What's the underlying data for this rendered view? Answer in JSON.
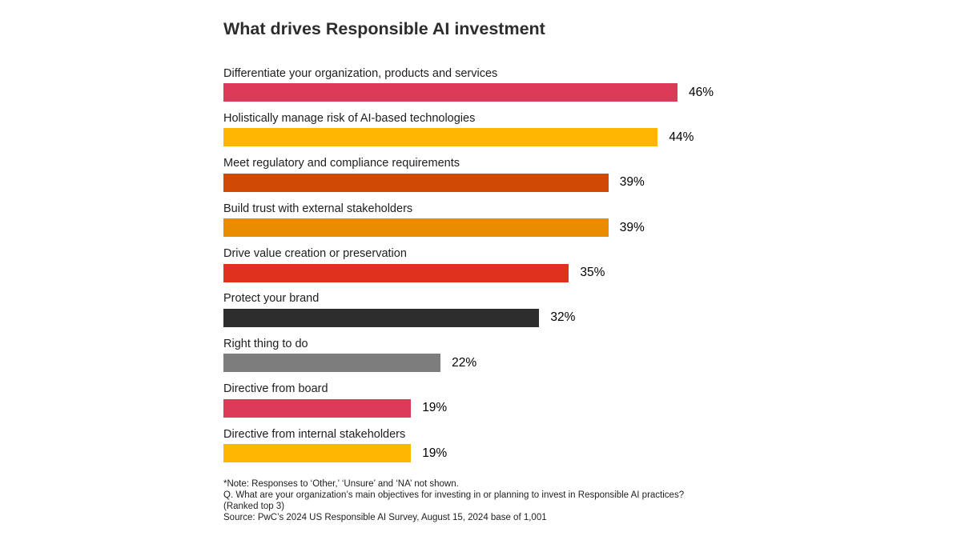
{
  "chart_data": {
    "type": "bar",
    "orientation": "horizontal",
    "title": "What drives Responsible AI investment",
    "xlabel": "",
    "ylabel": "",
    "grid": false,
    "legend": "none",
    "unit": "%",
    "categories": [
      "Differentiate your organization, products and services",
      "Holistically manage risk of AI-based technologies",
      "Meet regulatory and compliance requirements",
      "Build trust with external stakeholders",
      "Drive value creation or preservation",
      "Protect your brand",
      "Right thing to do",
      "Directive from board",
      "Directive from internal stakeholders"
    ],
    "values": [
      46,
      44,
      39,
      39,
      35,
      32,
      22,
      19,
      19
    ],
    "value_labels": [
      "46%",
      "44%",
      "39%",
      "39%",
      "35%",
      "32%",
      "22%",
      "19%",
      "19%"
    ],
    "colors": [
      "#dc3a57",
      "#ffb600",
      "#cf4a03",
      "#e98c00",
      "#e0301e",
      "#2d2d2d",
      "#7d7d7d",
      "#dc3a57",
      "#ffb600"
    ]
  },
  "footnotes": {
    "note": "*Note: Responses to ‘Other,’ ‘Unsure’ and ‘NA’ not shown.",
    "question": "Q. What are your organization’s main objectives for investing in or planning to invest in Responsible AI practices?",
    "question_cont": "(Ranked top 3)",
    "source": "Source: PwC’s 2024 US Responsible AI Survey, August 15, 2024 base of 1,001"
  }
}
